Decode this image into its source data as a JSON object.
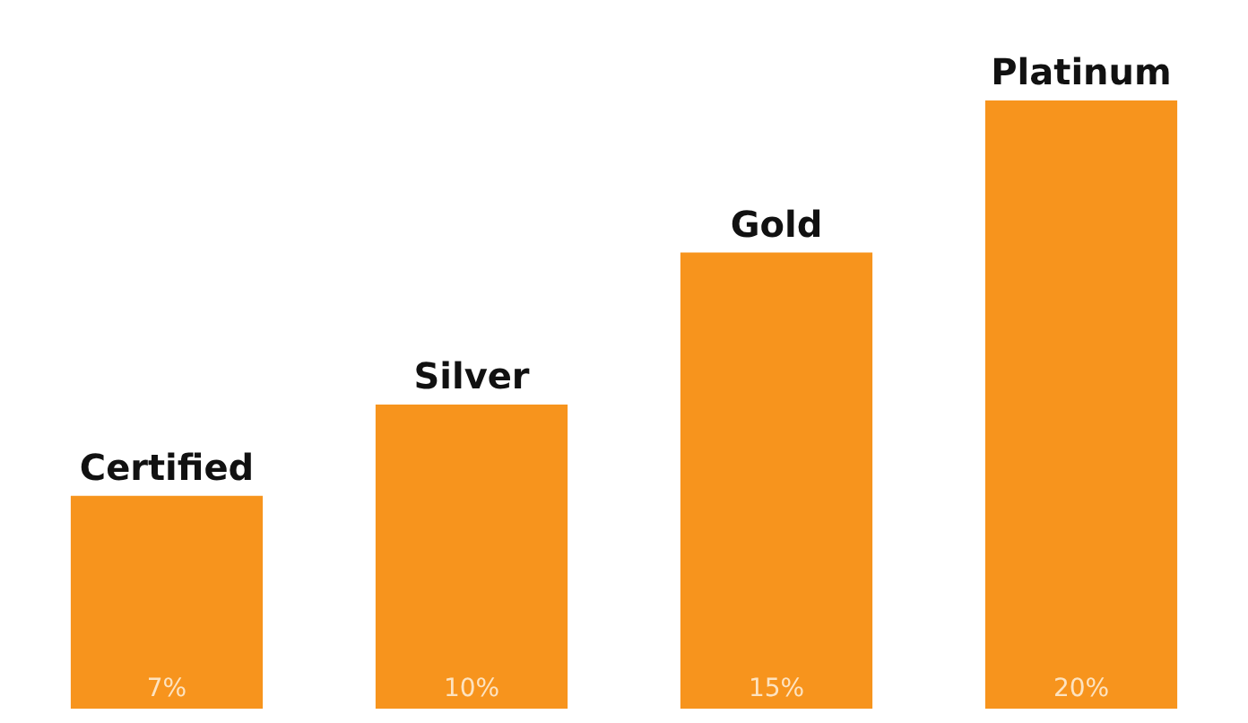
{
  "chart_data": {
    "type": "bar",
    "categories": [
      "Certified",
      "Silver",
      "Gold",
      "Platinum"
    ],
    "values": [
      7,
      10,
      15,
      20
    ],
    "value_labels": [
      "7%",
      "10%",
      "15%",
      "20%"
    ],
    "color": "#f7941d"
  }
}
